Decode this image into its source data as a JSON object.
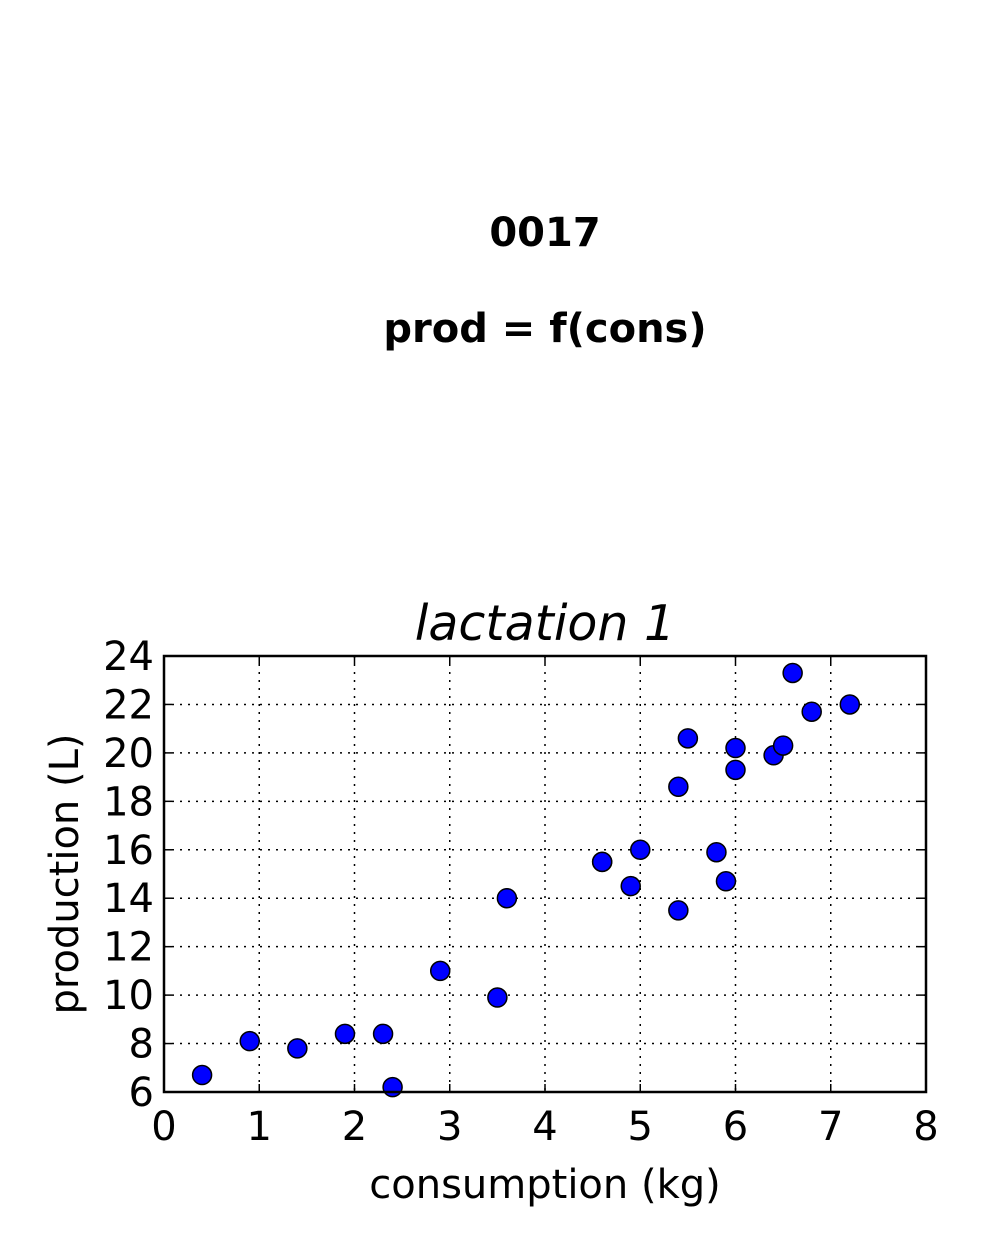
{
  "figure": {
    "title_line1": "0017",
    "title_line2": "prod = f(cons)"
  },
  "chart_data": {
    "type": "scatter",
    "title": "lactation 1",
    "xlabel": "consumption (kg)",
    "ylabel": "production (L)",
    "xlim": [
      0,
      8
    ],
    "ylim": [
      6,
      24
    ],
    "xticks": [
      0,
      1,
      2,
      3,
      4,
      5,
      6,
      7,
      8
    ],
    "yticks": [
      6,
      8,
      10,
      12,
      14,
      16,
      18,
      20,
      22,
      24
    ],
    "grid": true,
    "marker_color": "#0000ff",
    "marker_edge_color": "#000000",
    "x": [
      0.4,
      0.9,
      1.4,
      1.9,
      2.3,
      2.4,
      2.9,
      3.5,
      3.6,
      4.6,
      4.6,
      4.9,
      5.0,
      5.4,
      5.4,
      5.5,
      5.8,
      5.9,
      6.0,
      6.0,
      6.4,
      6.5,
      6.6,
      6.8,
      7.2
    ],
    "y": [
      6.7,
      8.1,
      7.8,
      8.4,
      8.4,
      6.2,
      11.0,
      9.9,
      14.0,
      15.5,
      15.5,
      14.5,
      16.0,
      13.5,
      18.6,
      20.6,
      15.9,
      14.7,
      20.2,
      19.3,
      19.9,
      20.3,
      23.3,
      21.7,
      22.0
    ]
  }
}
